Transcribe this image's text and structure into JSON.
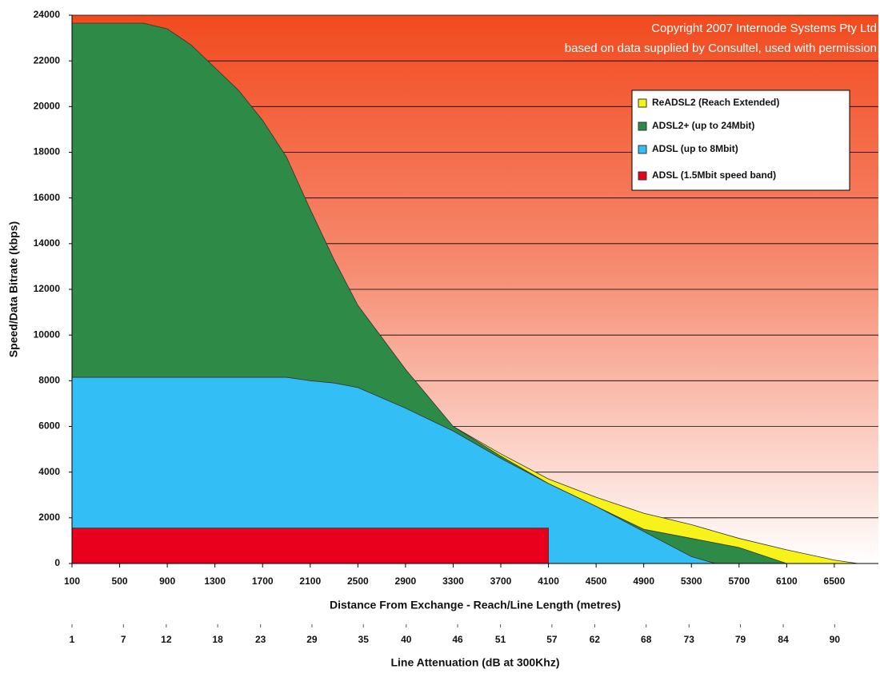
{
  "chart_data": {
    "type": "area",
    "annotations": [
      "Copyright 2007 Internode Systems Pty Ltd",
      "based on data supplied by Consultel, used with permission"
    ],
    "x_label": "Distance From Exchange - Reach/Line Length (metres)",
    "y_label": "Speed/Data Bitrate (kbps)",
    "x2_label": "Line Attenuation (dB at 300Khz)",
    "x": [
      100,
      500,
      700,
      900,
      1100,
      1300,
      1500,
      1700,
      1900,
      2100,
      2300,
      2500,
      2900,
      3300,
      3700,
      4100,
      4500,
      4900,
      5300,
      5500,
      5700,
      6100,
      6500,
      6700
    ],
    "series": [
      {
        "name": "ReADSL2 (Reach Extended)",
        "color": "#f7f21a",
        "values": [
          null,
          null,
          null,
          null,
          null,
          null,
          null,
          null,
          null,
          null,
          null,
          null,
          null,
          6000,
          4800,
          3700,
          2900,
          2200,
          1700,
          1400,
          1100,
          600,
          150,
          0
        ]
      },
      {
        "name": "ADSL2+ (up to 24Mbit)",
        "color": "#2e8b47",
        "values": [
          23650,
          23650,
          23650,
          23400,
          22700,
          21700,
          20700,
          19400,
          17800,
          15500,
          13300,
          11300,
          8500,
          6000,
          4700,
          3500,
          2500,
          1500,
          1100,
          900,
          700,
          0,
          null,
          null
        ]
      },
      {
        "name": "ADSL (up to 8Mbit)",
        "color": "#33bff5",
        "values": [
          8150,
          8150,
          8150,
          8150,
          8150,
          8150,
          8150,
          8150,
          8150,
          8000,
          7900,
          7700,
          6800,
          5800,
          4600,
          3500,
          2500,
          1400,
          300,
          0,
          null,
          null,
          null,
          null
        ]
      },
      {
        "name": "ADSL (1.5Mbit speed band)",
        "color": "#e8001c",
        "values": [
          1550,
          1550,
          1550,
          1550,
          1550,
          1550,
          1550,
          1550,
          1550,
          1550,
          1550,
          1550,
          1550,
          1550,
          1550,
          1550,
          null,
          null,
          null,
          null,
          null,
          null,
          null,
          null
        ]
      }
    ],
    "xlim": [
      100,
      6870
    ],
    "xticks": [
      100,
      500,
      900,
      1300,
      1700,
      2100,
      2500,
      2900,
      3300,
      3700,
      4100,
      4500,
      4900,
      5300,
      5700,
      6100,
      6500
    ],
    "x2lim": [
      1,
      95.1
    ],
    "x2ticks": [
      1,
      7,
      12,
      18,
      23,
      29,
      35,
      40,
      46,
      51,
      57,
      62,
      68,
      73,
      79,
      84,
      90
    ],
    "ylim": [
      0,
      24000
    ],
    "yticks": [
      0,
      2000,
      4000,
      6000,
      8000,
      10000,
      12000,
      14000,
      16000,
      18000,
      20000,
      22000,
      24000
    ],
    "grid": true
  }
}
